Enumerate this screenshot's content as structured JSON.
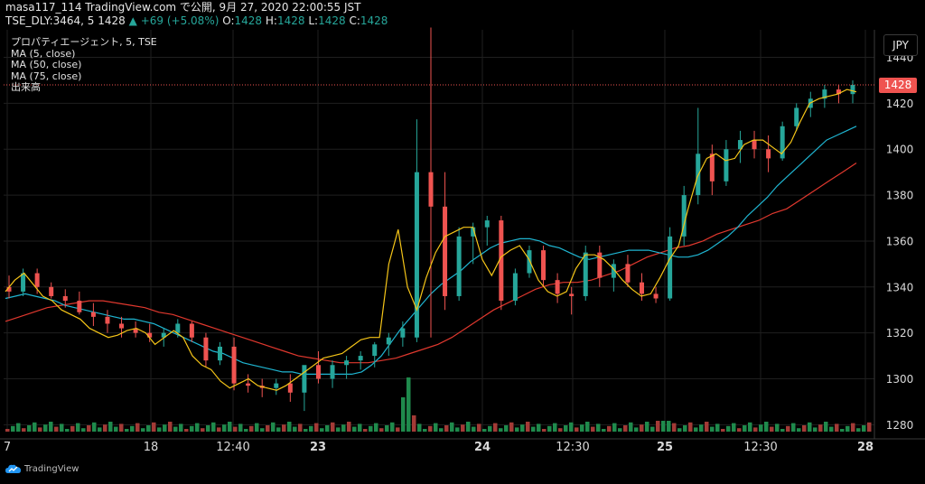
{
  "header": {
    "line1": "masa117_114 TradingView.com で公開, 9月 27, 2020 22:00:55 JST",
    "symbol": "TSE_DLY:3464, 5",
    "last": "1428",
    "change_arrow": "▲",
    "change": "+69 (+5.08%)",
    "o_label": "O:",
    "o_value": "1428",
    "h_label": "H:",
    "h_value": "1428",
    "l_label": "L:",
    "l_value": "1428",
    "c_label": "C:",
    "c_value": "1428"
  },
  "legend": {
    "title": "プロパティエージェント, 5, TSE",
    "ma5": "MA (5, close)",
    "ma50": "MA (50, close)",
    "ma75": "MA (75, close)",
    "volume": "出来高"
  },
  "currency": "JPY",
  "last_price_tag": "1428",
  "brand": "TradingView",
  "colors": {
    "up": "#26a69a",
    "down": "#ef5350",
    "ma5": "#f5c518",
    "ma50": "#1fb5d1",
    "ma75": "#e0382e",
    "grid": "#1f1f1f",
    "vol_up": "#1f8a4c",
    "vol_down": "#a33a36"
  },
  "chart_data": {
    "type": "candlestick",
    "symbol": "TSE_DLY:3464",
    "interval": "5",
    "ylim": [
      1277,
      1452
    ],
    "y_ticks": [
      1280,
      1300,
      1320,
      1340,
      1360,
      1380,
      1400,
      1420,
      1440
    ],
    "x_tick_labels": [
      "7",
      "18",
      "12:40",
      "23",
      "24",
      "12:30",
      "25",
      "12:30",
      "28"
    ],
    "bold_x_ticks": [
      "23",
      "24",
      "25",
      "28"
    ],
    "last_price": 1428,
    "series": [
      {
        "name": "MA (5, close)"
      },
      {
        "name": "MA (50, close)"
      },
      {
        "name": "MA (75, close)"
      },
      {
        "name": "出来高"
      }
    ],
    "ma5": [
      1338,
      1343,
      1346,
      1341,
      1336,
      1334,
      1330,
      1328,
      1326,
      1322,
      1320,
      1318,
      1319,
      1321,
      1322,
      1320,
      1315,
      1318,
      1321,
      1318,
      1310,
      1306,
      1304,
      1299,
      1296,
      1298,
      1300,
      1297,
      1296,
      1295,
      1297,
      1300,
      1303,
      1306,
      1309,
      1310,
      1311,
      1314,
      1317,
      1318,
      1318,
      1350,
      1365,
      1340,
      1330,
      1344,
      1355,
      1362,
      1364,
      1366,
      1366,
      1352,
      1345,
      1353,
      1356,
      1358,
      1352,
      1343,
      1338,
      1336,
      1338,
      1348,
      1354,
      1354,
      1352,
      1348,
      1343,
      1339,
      1336,
      1337,
      1344,
      1352,
      1358,
      1374,
      1388,
      1396,
      1398,
      1395,
      1396,
      1402,
      1404,
      1404,
      1401,
      1398,
      1403,
      1412,
      1420,
      1422,
      1423,
      1424,
      1426,
      1425
    ],
    "ma50": [
      1335,
      1336,
      1337,
      1336,
      1335,
      1334,
      1332,
      1331,
      1330,
      1329,
      1328,
      1327,
      1326,
      1326,
      1325,
      1324,
      1322,
      1320,
      1318,
      1316,
      1314,
      1312,
      1311,
      1309,
      1307,
      1306,
      1305,
      1304,
      1303,
      1303,
      1302,
      1302,
      1302,
      1302,
      1302,
      1302,
      1303,
      1306,
      1310,
      1316,
      1322,
      1327,
      1332,
      1337,
      1341,
      1344,
      1347,
      1351,
      1354,
      1357,
      1359,
      1360,
      1361,
      1361,
      1360,
      1358,
      1357,
      1355,
      1353,
      1352,
      1353,
      1354,
      1355,
      1356,
      1356,
      1356,
      1355,
      1354,
      1353,
      1353,
      1354,
      1356,
      1359,
      1362,
      1366,
      1371,
      1375,
      1379,
      1384,
      1388,
      1392,
      1396,
      1400,
      1404,
      1406,
      1408,
      1410
    ],
    "ma75": [
      1325,
      1327,
      1329,
      1331,
      1332,
      1333,
      1334,
      1334,
      1333,
      1332,
      1331,
      1329,
      1328,
      1326,
      1324,
      1322,
      1320,
      1318,
      1316,
      1314,
      1312,
      1310,
      1309,
      1308,
      1307,
      1307,
      1307,
      1308,
      1309,
      1311,
      1313,
      1315,
      1318,
      1322,
      1326,
      1330,
      1333,
      1336,
      1339,
      1341,
      1342,
      1342,
      1343,
      1345,
      1347,
      1350,
      1353,
      1355,
      1357,
      1358,
      1360,
      1363,
      1365,
      1367,
      1369,
      1372,
      1374,
      1378,
      1382,
      1386,
      1390,
      1394
    ],
    "candles_ohlc": [
      [
        1340,
        1345,
        1335,
        1338
      ],
      [
        1338,
        1348,
        1336,
        1346
      ],
      [
        1346,
        1348,
        1337,
        1340
      ],
      [
        1340,
        1342,
        1335,
        1336
      ],
      [
        1336,
        1339,
        1331,
        1334
      ],
      [
        1334,
        1338,
        1328,
        1329
      ],
      [
        1329,
        1333,
        1323,
        1327
      ],
      [
        1327,
        1330,
        1320,
        1324
      ],
      [
        1324,
        1327,
        1318,
        1322
      ],
      [
        1322,
        1325,
        1318,
        1320
      ],
      [
        1320,
        1324,
        1316,
        1318
      ],
      [
        1318,
        1322,
        1314,
        1320
      ],
      [
        1320,
        1326,
        1318,
        1324
      ],
      [
        1324,
        1325,
        1316,
        1318
      ],
      [
        1318,
        1320,
        1305,
        1308
      ],
      [
        1308,
        1316,
        1306,
        1314
      ],
      [
        1314,
        1318,
        1295,
        1298
      ],
      [
        1298,
        1302,
        1294,
        1297
      ],
      [
        1297,
        1300,
        1292,
        1296
      ],
      [
        1296,
        1300,
        1293,
        1298
      ],
      [
        1298,
        1302,
        1290,
        1294
      ],
      [
        1294,
        1300,
        1286,
        1306
      ],
      [
        1306,
        1312,
        1298,
        1300
      ],
      [
        1300,
        1308,
        1296,
        1306
      ],
      [
        1306,
        1310,
        1300,
        1308
      ],
      [
        1308,
        1312,
        1304,
        1310
      ],
      [
        1310,
        1316,
        1305,
        1315
      ],
      [
        1315,
        1320,
        1310,
        1318
      ],
      [
        1318,
        1325,
        1314,
        1322
      ],
      [
        1318,
        1413,
        1316,
        1390
      ],
      [
        1390,
        1453,
        1318,
        1375
      ],
      [
        1375,
        1390,
        1330,
        1336
      ],
      [
        1336,
        1366,
        1334,
        1362
      ],
      [
        1362,
        1368,
        1350,
        1366
      ],
      [
        1366,
        1371,
        1358,
        1369
      ],
      [
        1369,
        1371,
        1330,
        1334
      ],
      [
        1334,
        1348,
        1332,
        1346
      ],
      [
        1346,
        1358,
        1344,
        1356
      ],
      [
        1356,
        1358,
        1340,
        1343
      ],
      [
        1343,
        1346,
        1333,
        1337
      ],
      [
        1337,
        1340,
        1328,
        1336
      ],
      [
        1336,
        1358,
        1334,
        1355
      ],
      [
        1355,
        1358,
        1340,
        1344
      ],
      [
        1344,
        1352,
        1338,
        1350
      ],
      [
        1350,
        1354,
        1340,
        1342
      ],
      [
        1342,
        1346,
        1334,
        1337
      ],
      [
        1337,
        1340,
        1333,
        1335
      ],
      [
        1335,
        1366,
        1334,
        1362
      ],
      [
        1362,
        1384,
        1358,
        1380
      ],
      [
        1380,
        1418,
        1376,
        1398
      ],
      [
        1398,
        1402,
        1380,
        1386
      ],
      [
        1386,
        1404,
        1384,
        1400
      ],
      [
        1400,
        1408,
        1394,
        1404
      ],
      [
        1404,
        1408,
        1396,
        1400
      ],
      [
        1400,
        1406,
        1390,
        1396
      ],
      [
        1396,
        1412,
        1395,
        1410
      ],
      [
        1410,
        1420,
        1408,
        1418
      ],
      [
        1418,
        1425,
        1414,
        1422
      ],
      [
        1422,
        1428,
        1418,
        1426
      ],
      [
        1426,
        1428,
        1420,
        1424
      ],
      [
        1424,
        1430,
        1420,
        1428
      ]
    ]
  }
}
